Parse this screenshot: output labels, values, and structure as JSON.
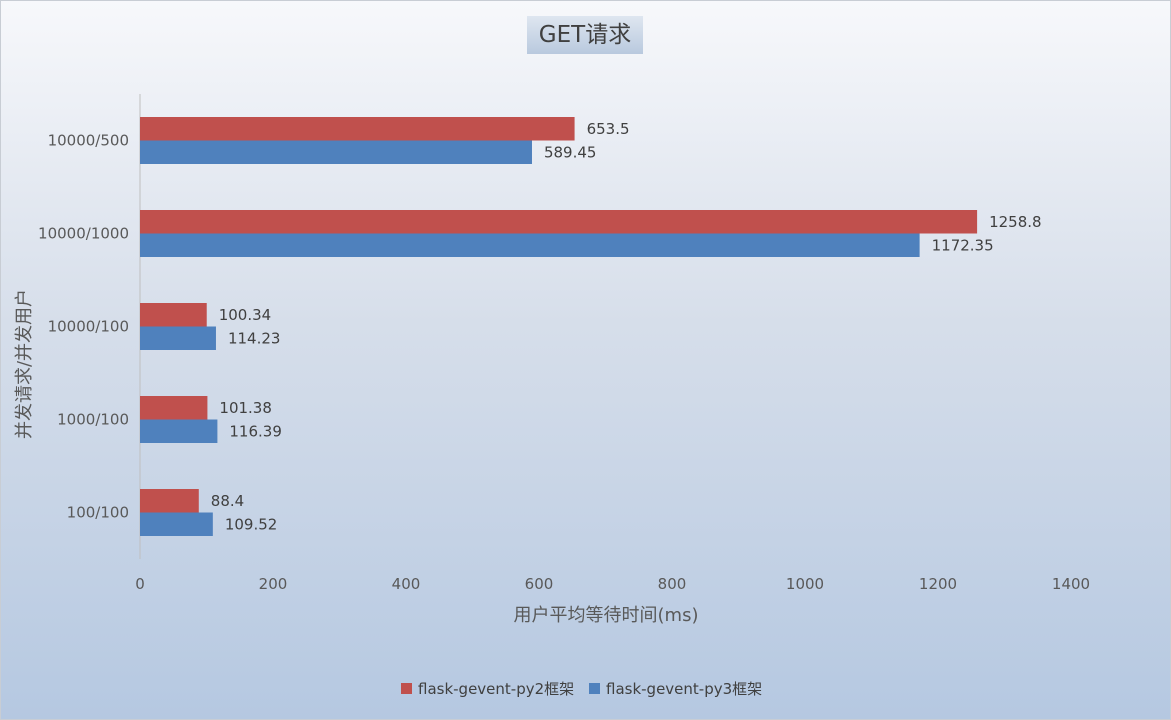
{
  "chart_data": {
    "type": "bar",
    "orientation": "horizontal",
    "title": "GET请求",
    "xlabel": "用户平均等待时间(ms)",
    "ylabel": "并发请求/并发用户",
    "categories": [
      "10000/500",
      "10000/1000",
      "10000/100",
      "1000/100",
      "100/100"
    ],
    "series": [
      {
        "name": "flask-gevent-py2框架",
        "color": "#c0504d",
        "values": [
          653.5,
          1258.8,
          100.34,
          101.38,
          88.4
        ]
      },
      {
        "name": "flask-gevent-py3框架",
        "color": "#4f81bd",
        "values": [
          589.45,
          1172.35,
          114.23,
          116.39,
          109.52
        ]
      }
    ],
    "data_labels": [
      [
        "653.5",
        "1258.8",
        "100.34",
        "101.38",
        "88.4"
      ],
      [
        "589.45",
        "1172.35",
        "114.23",
        "116.39",
        "109.52"
      ]
    ],
    "xlim": [
      0,
      1400
    ],
    "xticks": [
      "0",
      "200",
      "400",
      "600",
      "800",
      "1000",
      "1200",
      "1400"
    ],
    "grid": false,
    "legend_position": "bottom"
  }
}
